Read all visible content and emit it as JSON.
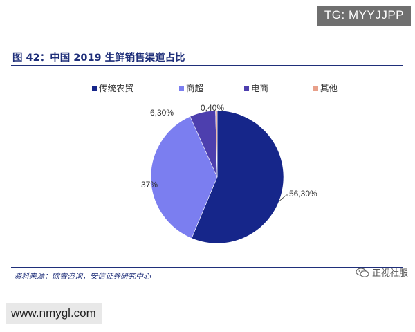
{
  "watermark_top": "TG: MYYJJPP",
  "watermark_bottom": "www.nmygl.com",
  "figure_title": "图 42：中国 2019 生鲜销售渠道占比",
  "source": "资料来源：欧睿咨询，安信证券研究中心",
  "brand": "正视社服",
  "brand_icon": "wechat-icon",
  "chart_data": {
    "type": "pie",
    "title": "",
    "legend_position": "top",
    "slices": [
      {
        "name": "传统农贸",
        "value": 56.3,
        "label": "56,30%",
        "color": "#16268a"
      },
      {
        "name": "商超",
        "value": 37,
        "label": "37%",
        "color": "#7b7ef0"
      },
      {
        "name": "电商",
        "value": 6.3,
        "label": "6,30%",
        "color": "#4d3fae"
      },
      {
        "name": "其他",
        "value": 0.4,
        "label": "0,40%",
        "color": "#e8a08a"
      }
    ]
  }
}
